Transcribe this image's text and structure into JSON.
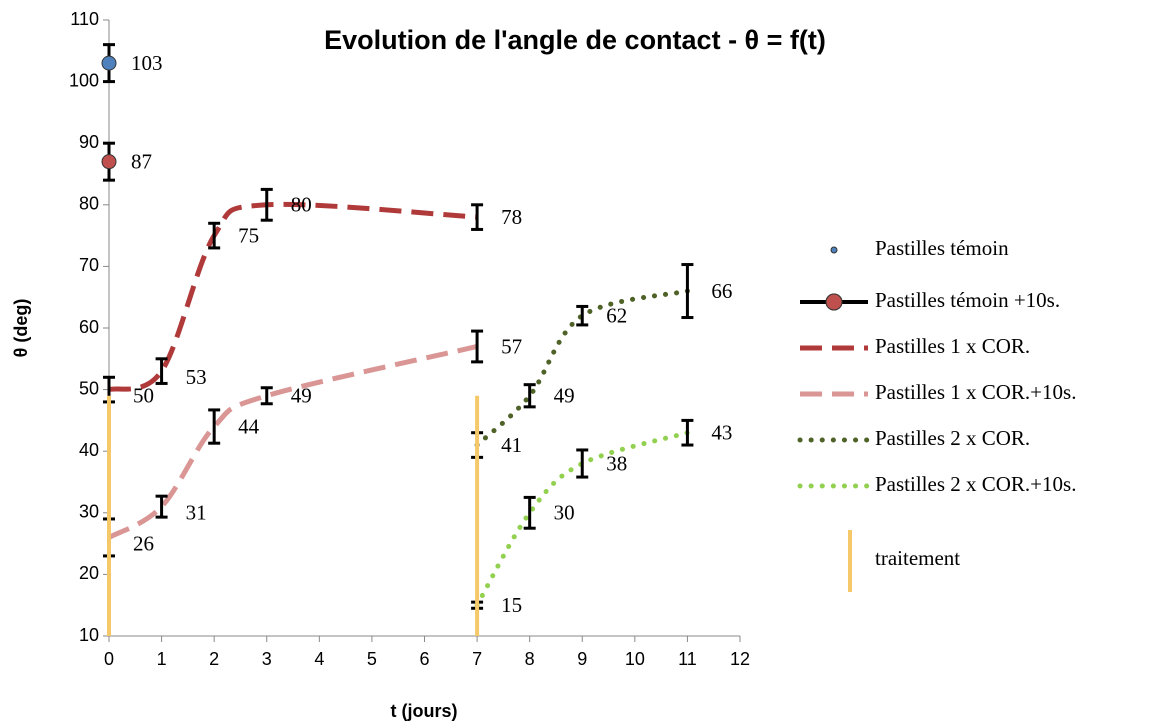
{
  "chart_data": {
    "type": "line",
    "title": "Evolution de l'angle de contact - θ = f(t)",
    "xlabel": "t (jours)",
    "ylabel": "θ (deg)",
    "xlim": [
      0,
      12
    ],
    "xticks": [
      0,
      1,
      2,
      3,
      4,
      5,
      6,
      7,
      8,
      9,
      10,
      11,
      12
    ],
    "ylim": [
      10,
      110
    ],
    "yticks": [
      10,
      20,
      30,
      40,
      50,
      60,
      70,
      80,
      90,
      100,
      110
    ],
    "grid": false,
    "legend": "right",
    "series": [
      {
        "name": "Pastilles témoin",
        "color": "#4f81bd",
        "marker": true,
        "x": [
          0
        ],
        "values": [
          103
        ],
        "errors": [
          3
        ]
      },
      {
        "name": "Pastilles témoin +10s.",
        "color": "#c0504d",
        "marker": true,
        "x": [
          0
        ],
        "values": [
          87
        ],
        "errors": [
          3
        ]
      },
      {
        "name": "Pastilles 1 x COR.",
        "color": "#b03a3a",
        "line": "dashed",
        "x": [
          0,
          1,
          2,
          3,
          7
        ],
        "values": [
          50,
          53,
          75,
          80,
          78
        ],
        "errors": [
          2,
          2,
          2,
          2.5,
          2
        ]
      },
      {
        "name": "Pastilles 1 x COR.+10s.",
        "color": "#d99694",
        "line": "dashed",
        "x": [
          0,
          1,
          2,
          3,
          7
        ],
        "values": [
          26,
          31,
          44,
          49,
          57
        ],
        "errors": [
          3,
          1.7,
          2.7,
          1.3,
          2.5
        ]
      },
      {
        "name": "Pastilles 2 x COR.",
        "color": "#4f6228",
        "line": "dotted",
        "x": [
          7,
          8,
          9,
          11
        ],
        "values": [
          41,
          49,
          62,
          66
        ],
        "errors": [
          2,
          1.8,
          1.5,
          4.3
        ]
      },
      {
        "name": "Pastilles 2 x COR.+10s.",
        "color": "#92d050",
        "line": "dotted",
        "x": [
          7,
          8,
          9,
          11
        ],
        "values": [
          15,
          30,
          38,
          43
        ],
        "errors": [
          0.5,
          2.5,
          2.2,
          2
        ]
      },
      {
        "name": "traitement",
        "color": "#f5c96a",
        "line": "vertical",
        "x": [
          0,
          7
        ],
        "values": [
          49,
          49
        ]
      }
    ]
  }
}
